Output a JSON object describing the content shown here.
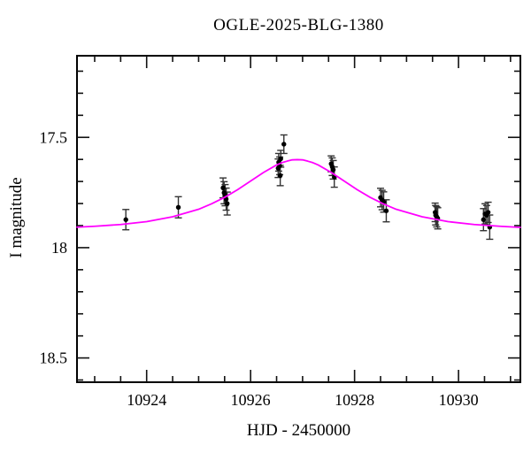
{
  "figure": {
    "background": "#ffffff",
    "frame_color": "#000000"
  },
  "chart_data": {
    "type": "scatter",
    "title": "OGLE-2025-BLG-1380",
    "xlabel": "HJD - 2450000",
    "ylabel": "I magnitude",
    "xlim": [
      10922.66,
      10931.19
    ],
    "ylim": [
      18.61,
      17.13
    ],
    "y_axis_inverted": true,
    "grid": false,
    "legend": "none",
    "x_ticks": {
      "major": [
        10924,
        10926,
        10928,
        10930
      ],
      "labels": [
        "10924",
        "10926",
        "10928",
        "10930"
      ],
      "minor_start": 10923.0,
      "minor_step": 0.5,
      "minor_end": 10931.0
    },
    "y_ticks": {
      "major": [
        17.5,
        18,
        18.5
      ],
      "labels": [
        "17.5",
        "18",
        "18.5"
      ],
      "minor_start": 17.2,
      "minor_step": 0.1,
      "minor_end": 18.6
    },
    "series": [
      {
        "name": "I-band photometry",
        "type": "scatter-errorbar",
        "marker": "filled-circle",
        "color": "#000000",
        "errorbar_color": "#333333",
        "points_t_mag_err": [
          [
            10923.6,
            17.873,
            0.046
          ],
          [
            10924.61,
            17.817,
            0.048
          ],
          [
            10925.47,
            17.729,
            0.045
          ],
          [
            10925.49,
            17.751,
            0.05
          ],
          [
            10925.51,
            17.762,
            0.048
          ],
          [
            10925.53,
            17.78,
            0.05
          ],
          [
            10925.55,
            17.8,
            0.052
          ],
          [
            10926.53,
            17.64,
            0.042
          ],
          [
            10926.54,
            17.613,
            0.04
          ],
          [
            10926.56,
            17.629,
            0.04
          ],
          [
            10926.57,
            17.673,
            0.046
          ],
          [
            10926.58,
            17.597,
            0.038
          ],
          [
            10926.64,
            17.531,
            0.042
          ],
          [
            10927.55,
            17.62,
            0.036
          ],
          [
            10927.57,
            17.633,
            0.04
          ],
          [
            10927.59,
            17.647,
            0.042
          ],
          [
            10927.61,
            17.68,
            0.046
          ],
          [
            10928.5,
            17.773,
            0.042
          ],
          [
            10928.53,
            17.784,
            0.044
          ],
          [
            10928.56,
            17.793,
            0.046
          ],
          [
            10928.61,
            17.833,
            0.05
          ],
          [
            10929.55,
            17.84,
            0.042
          ],
          [
            10929.56,
            17.853,
            0.044
          ],
          [
            10929.58,
            17.86,
            0.046
          ],
          [
            10929.6,
            17.867,
            0.048
          ],
          [
            10930.48,
            17.873,
            0.05
          ],
          [
            10930.51,
            17.847,
            0.046
          ],
          [
            10930.54,
            17.853,
            0.044
          ],
          [
            10930.57,
            17.84,
            0.046
          ],
          [
            10930.6,
            17.907,
            0.055
          ]
        ]
      },
      {
        "name": "microlensing model",
        "type": "line",
        "color": "#ff00ff",
        "peak_t": 10926.9,
        "peak_mag": 17.6,
        "baseline_mag": 17.92,
        "points_t_mag": [
          [
            10922.66,
            17.907
          ],
          [
            10923.0,
            17.903
          ],
          [
            10923.5,
            17.895
          ],
          [
            10924.0,
            17.882
          ],
          [
            10924.5,
            17.86
          ],
          [
            10925.0,
            17.826
          ],
          [
            10925.25,
            17.801
          ],
          [
            10925.5,
            17.772
          ],
          [
            10925.75,
            17.737
          ],
          [
            10926.0,
            17.698
          ],
          [
            10926.25,
            17.659
          ],
          [
            10926.5,
            17.625
          ],
          [
            10926.6,
            17.615
          ],
          [
            10926.7,
            17.608
          ],
          [
            10926.8,
            17.602
          ],
          [
            10926.9,
            17.601
          ],
          [
            10927.0,
            17.602
          ],
          [
            10927.1,
            17.608
          ],
          [
            10927.2,
            17.615
          ],
          [
            10927.3,
            17.625
          ],
          [
            10927.55,
            17.659
          ],
          [
            10927.8,
            17.698
          ],
          [
            10928.05,
            17.737
          ],
          [
            10928.3,
            17.772
          ],
          [
            10928.55,
            17.801
          ],
          [
            10928.8,
            17.826
          ],
          [
            10929.3,
            17.86
          ],
          [
            10929.8,
            17.882
          ],
          [
            10930.3,
            17.895
          ],
          [
            10930.8,
            17.903
          ],
          [
            10931.19,
            17.908
          ]
        ]
      }
    ]
  }
}
